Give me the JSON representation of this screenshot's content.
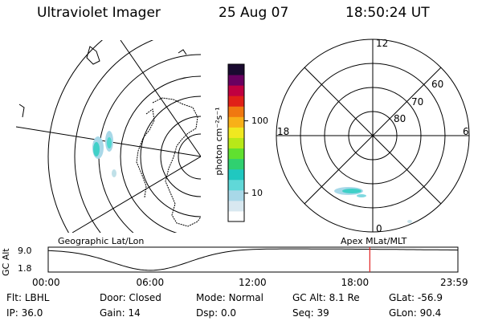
{
  "header": {
    "title": "Ultraviolet Imager",
    "date": "25 Aug 07",
    "time": "18:50:24 UT"
  },
  "map_panel": {
    "label": "Geographic Lat/Lon"
  },
  "polar_panel": {
    "label": "Apex MLat/MLT",
    "mlt_labels": {
      "top": "12",
      "left": "18",
      "right": "6",
      "bottom": "0"
    },
    "lat_labels": [
      "60",
      "70",
      "80"
    ]
  },
  "colorbar": {
    "unit_label": "photon cm⁻²s⁻¹",
    "ticks": [
      {
        "label": "100",
        "value": 100
      },
      {
        "label": "10",
        "value": 10
      }
    ],
    "colors": [
      "#ffffff",
      "#d8e8f0",
      "#a8d8e8",
      "#60d8d8",
      "#20c8c0",
      "#30d070",
      "#60e030",
      "#b8e818",
      "#f0e820",
      "#f8b018",
      "#f07810",
      "#e02018",
      "#c00040",
      "#6a0060",
      "#1a0a30"
    ]
  },
  "altitude_plot": {
    "ylabel": "GC Alt",
    "y_ticks": [
      "9.0",
      "1.8"
    ],
    "x_ticks": [
      "00:00",
      "06:00",
      "12:00",
      "18:00",
      "23:59"
    ],
    "current_time_hours": 18.84
  },
  "status": {
    "rows": [
      [
        {
          "key": "Flt:",
          "value": "LBHL"
        },
        {
          "key": "Door:",
          "value": "Closed"
        },
        {
          "key": "Mode:",
          "value": "Normal"
        },
        {
          "key": "GC Alt:",
          "value": "8.1 Re"
        },
        {
          "key": "GLat:",
          "value": "-56.9"
        }
      ],
      [
        {
          "key": "IP:",
          "value": "36.0"
        },
        {
          "key": "Gain:",
          "value": "14"
        },
        {
          "key": "Dsp:",
          "value": "0.0"
        },
        {
          "key": "Seq:",
          "value": "39"
        },
        {
          "key": "GLon:",
          "value": "90.4"
        }
      ]
    ]
  }
}
